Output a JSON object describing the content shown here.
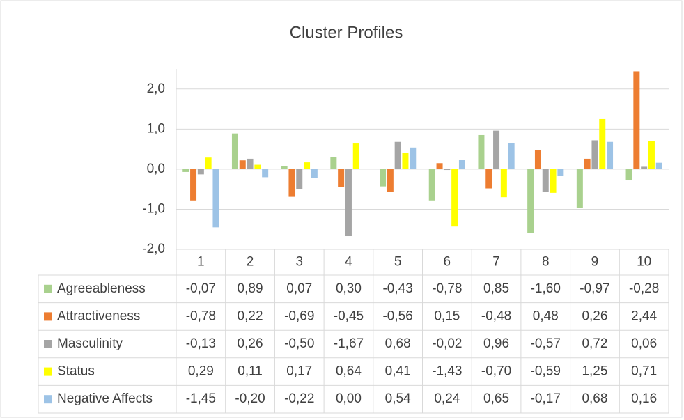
{
  "chart_data": {
    "type": "bar",
    "title": "Cluster Profiles",
    "categories": [
      "1",
      "2",
      "3",
      "4",
      "5",
      "6",
      "7",
      "8",
      "9",
      "10"
    ],
    "ylim": [
      -2,
      2.5
    ],
    "yticks": [
      {
        "value": -2,
        "label": "-2,0"
      },
      {
        "value": -1,
        "label": "-1,0"
      },
      {
        "value": 0,
        "label": "0,0"
      },
      {
        "value": 1,
        "label": "1,0"
      },
      {
        "value": 2,
        "label": "2,0"
      }
    ],
    "grid": true,
    "series": [
      {
        "name": "Agreeableness",
        "color": "#a9d18e",
        "values": [
          -0.07,
          0.89,
          0.07,
          0.3,
          -0.43,
          -0.78,
          0.85,
          -1.6,
          -0.97,
          -0.28
        ],
        "value_labels": [
          "-0,07",
          "0,89",
          "0,07",
          "0,30",
          "-0,43",
          "-0,78",
          "0,85",
          "-1,60",
          "-0,97",
          "-0,28"
        ]
      },
      {
        "name": "Attractiveness",
        "color": "#ed7d31",
        "values": [
          -0.78,
          0.22,
          -0.69,
          -0.45,
          -0.56,
          0.15,
          -0.48,
          0.48,
          0.26,
          2.44
        ],
        "value_labels": [
          "-0,78",
          "0,22",
          "-0,69",
          "-0,45",
          "-0,56",
          "0,15",
          "-0,48",
          "0,48",
          "0,26",
          "2,44"
        ]
      },
      {
        "name": "Masculinity",
        "color": "#a5a5a5",
        "values": [
          -0.13,
          0.26,
          -0.5,
          -1.67,
          0.68,
          -0.02,
          0.96,
          -0.57,
          0.72,
          0.06
        ],
        "value_labels": [
          "-0,13",
          "0,26",
          "-0,50",
          "-1,67",
          "0,68",
          "-0,02",
          "0,96",
          "-0,57",
          "0,72",
          "0,06"
        ]
      },
      {
        "name": "Status",
        "color": "#ffff00",
        "values": [
          0.29,
          0.11,
          0.17,
          0.64,
          0.41,
          -1.43,
          -0.7,
          -0.59,
          1.25,
          0.71
        ],
        "value_labels": [
          "0,29",
          "0,11",
          "0,17",
          "0,64",
          "0,41",
          "-1,43",
          "-0,70",
          "-0,59",
          "1,25",
          "0,71"
        ]
      },
      {
        "name": "Negative Affects",
        "color": "#9dc3e6",
        "values": [
          -1.45,
          -0.2,
          -0.22,
          0.0,
          0.54,
          0.24,
          0.65,
          -0.17,
          0.68,
          0.16
        ],
        "value_labels": [
          "-1,45",
          "-0,20",
          "-0,22",
          "0,00",
          "0,54",
          "0,24",
          "0,65",
          "-0,17",
          "0,68",
          "0,16"
        ]
      }
    ]
  }
}
